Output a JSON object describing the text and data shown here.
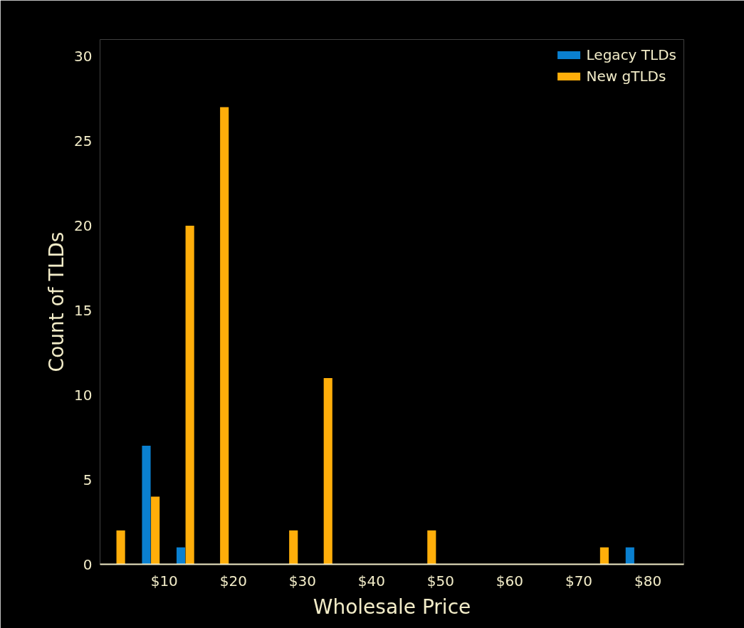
{
  "chart_data": {
    "type": "histogram",
    "xlabel": "Wholesale Price",
    "ylabel": "Count of TLDs",
    "bins": [
      0,
      5,
      10,
      15,
      20,
      25,
      30,
      35,
      40,
      45,
      50,
      55,
      60,
      65,
      70,
      75,
      80
    ],
    "series": [
      {
        "name": "Legacy TLDs",
        "color": "#0a80d0",
        "values": [
          0,
          7,
          1,
          0,
          0,
          0,
          0,
          0,
          0,
          0,
          0,
          0,
          0,
          0,
          0,
          1
        ]
      },
      {
        "name": "New gTLDs",
        "color": "#ffae0a",
        "values": [
          2,
          4,
          20,
          27,
          0,
          2,
          11,
          0,
          0,
          2,
          0,
          0,
          0,
          0,
          1,
          0
        ]
      }
    ],
    "xlim": [
      0.7,
      85.2
    ],
    "ylim": [
      0,
      31
    ],
    "xticks": [
      {
        "value": 10,
        "label": "$10"
      },
      {
        "value": 20,
        "label": "$20"
      },
      {
        "value": 30,
        "label": "$30"
      },
      {
        "value": 40,
        "label": "$40"
      },
      {
        "value": 50,
        "label": "$50"
      },
      {
        "value": 60,
        "label": "$60"
      },
      {
        "value": 70,
        "label": "$70"
      },
      {
        "value": 80,
        "label": "$80"
      }
    ],
    "yticks": [
      0,
      5,
      10,
      15,
      20,
      25,
      30
    ],
    "legend": "top right"
  }
}
